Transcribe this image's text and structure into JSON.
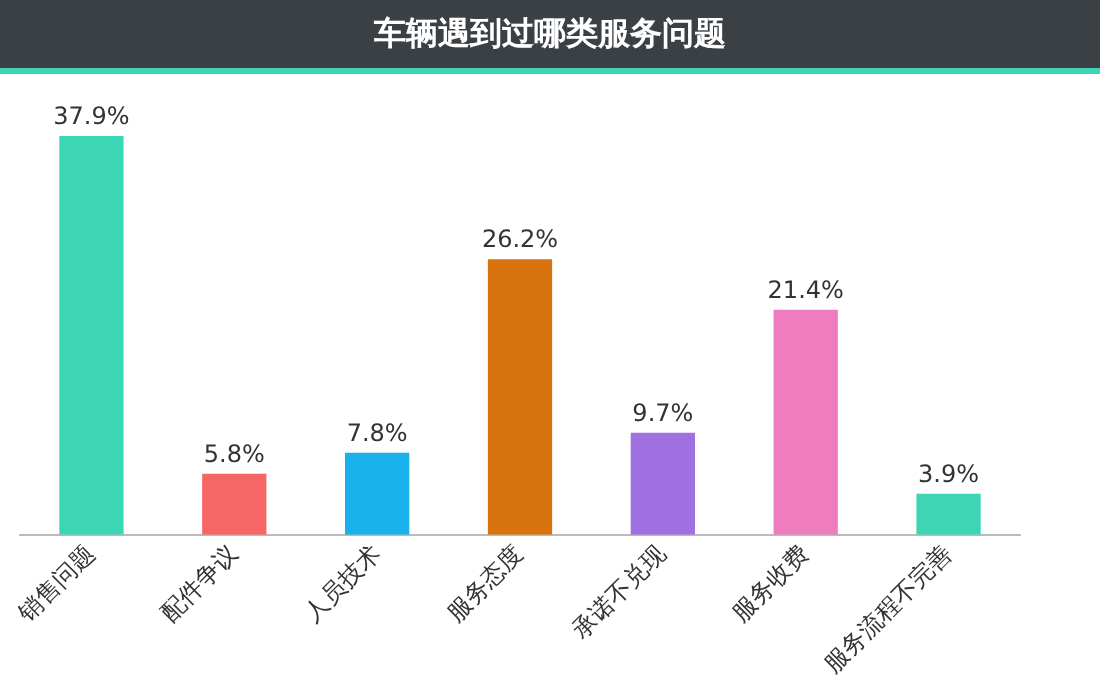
{
  "chart_data": {
    "type": "bar",
    "title": "车辆遇到过哪类服务问题",
    "categories": [
      "销售问题",
      "配件争议",
      "人员技术",
      "服务态度",
      "承诺不兑现",
      "服务收费",
      "服务流程不完善"
    ],
    "values": [
      37.9,
      5.8,
      7.8,
      26.2,
      9.7,
      21.4,
      3.9
    ],
    "colors": [
      "#3dd6b5",
      "#f76666",
      "#1ab0ec",
      "#d9730d",
      "#a070e0",
      "#f07cc0",
      "#3dd6b5"
    ],
    "value_labels": [
      "37.9%",
      "5.8%",
      "7.8%",
      "26.2%",
      "9.7%",
      "21.4%",
      "3.9%"
    ],
    "grid": false,
    "legend": false
  }
}
